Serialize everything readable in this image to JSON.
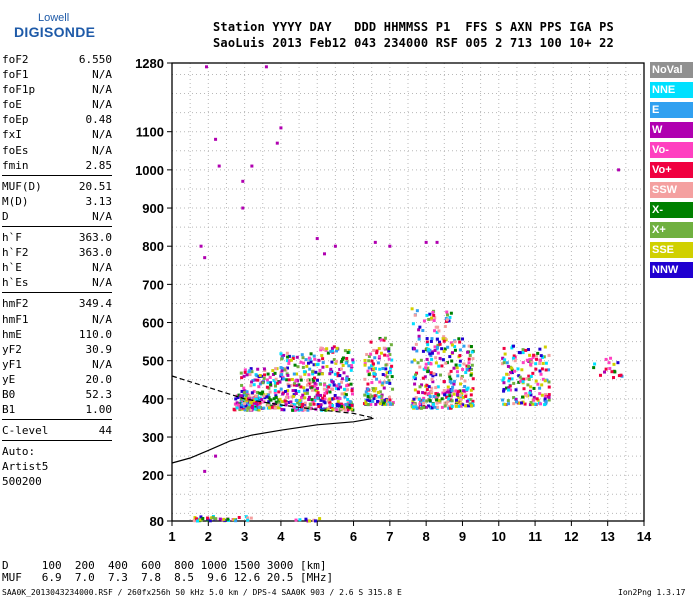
{
  "logo": {
    "line1": "Lowell",
    "line2": "DIGISONDE"
  },
  "header": {
    "line1": "Station YYYY DAY   DDD HHMMSS P1  FFS S AXN PPS IGA PS",
    "line2": "SaoLuis 2013 Feb12 043 234000 RSF 005 2 713 100 10+ 22"
  },
  "params_a": [
    {
      "label": "foF2",
      "value": "6.550"
    },
    {
      "label": "foF1",
      "value": "N/A"
    },
    {
      "label": "foF1p",
      "value": "N/A"
    },
    {
      "label": "foE",
      "value": "N/A"
    },
    {
      "label": "foEp",
      "value": "0.48"
    },
    {
      "label": "fxI",
      "value": "N/A"
    },
    {
      "label": "foEs",
      "value": "N/A"
    },
    {
      "label": "fmin",
      "value": "2.85"
    }
  ],
  "params_b": [
    {
      "label": "MUF(D)",
      "value": "20.51"
    },
    {
      "label": "M(D)",
      "value": "3.13"
    },
    {
      "label": "D",
      "value": "N/A"
    }
  ],
  "params_c": [
    {
      "label": "h`F",
      "value": "363.0"
    },
    {
      "label": "h`F2",
      "value": "363.0"
    },
    {
      "label": "h`E",
      "value": "N/A"
    },
    {
      "label": "h`Es",
      "value": "N/A"
    }
  ],
  "params_d": [
    {
      "label": "hmF2",
      "value": "349.4"
    },
    {
      "label": "hmF1",
      "value": "N/A"
    },
    {
      "label": "hmE",
      "value": "110.0"
    },
    {
      "label": "yF2",
      "value": "30.9"
    },
    {
      "label": "yF1",
      "value": "N/A"
    },
    {
      "label": "yE",
      "value": "20.0"
    },
    {
      "label": "B0",
      "value": "52.3"
    },
    {
      "label": "B1",
      "value": "1.00"
    }
  ],
  "params_e": [
    {
      "label": "C-level",
      "value": "44"
    }
  ],
  "autoscale": {
    "line1": "Auto:",
    "line2": "Artist5",
    "line3": "500200"
  },
  "legend": [
    {
      "label": "NoVal",
      "color": "#909090"
    },
    {
      "label": "NNE",
      "color": "#00e0ff"
    },
    {
      "label": "E",
      "color": "#30a0f0"
    },
    {
      "label": "W",
      "color": "#b000b0"
    },
    {
      "label": "Vo-",
      "color": "#ff40c0"
    },
    {
      "label": "Vo+",
      "color": "#f00040"
    },
    {
      "label": "SSW",
      "color": "#f4a0a0"
    },
    {
      "label": "X-",
      "color": "#008000"
    },
    {
      "label": "X+",
      "color": "#70b040"
    },
    {
      "label": "SSE",
      "color": "#d0d000"
    },
    {
      "label": "NNW",
      "color": "#2000d0"
    }
  ],
  "scale_table": {
    "d_row": "D     100  200  400  600  800 1000 1500 3000 [km]",
    "muf_row": "MUF   6.9  7.0  7.3  7.8  8.5  9.6 12.6 20.5 [MHz]"
  },
  "footer": {
    "left": "SAA0K_2013043234000.RSF / 260fx256h 50 kHz 5.0 km / DPS-4 SAA0K 903 / 2.6 S 315.8 E",
    "right": "Ion2Png 1.3.17"
  },
  "chart_data": {
    "type": "scatter",
    "x_ticks": [
      1,
      2,
      3,
      4,
      5,
      6,
      7,
      8,
      9,
      10,
      11,
      12,
      13,
      14
    ],
    "y_ticks": [
      80,
      200,
      300,
      400,
      500,
      600,
      700,
      800,
      900,
      1000,
      1100,
      1280
    ],
    "xlim": [
      1,
      14
    ],
    "ylim": [
      80,
      1280
    ],
    "grid": true,
    "legend_position": "right",
    "clusters": [
      {
        "f": [
          2.7,
          3.4
        ],
        "h": [
          370,
          410
        ],
        "n": 90
      },
      {
        "f": [
          2.9,
          4.0
        ],
        "h": [
          375,
          480
        ],
        "n": 160
      },
      {
        "f": [
          4.0,
          5.0
        ],
        "h": [
          370,
          520
        ],
        "n": 180
      },
      {
        "f": [
          5.0,
          6.0
        ],
        "h": [
          370,
          540
        ],
        "n": 200
      },
      {
        "f": [
          6.3,
          7.1
        ],
        "h": [
          385,
          560
        ],
        "n": 140
      },
      {
        "f": [
          7.6,
          8.7
        ],
        "h": [
          375,
          640
        ],
        "n": 240
      },
      {
        "f": [
          8.7,
          9.3
        ],
        "h": [
          380,
          560
        ],
        "n": 110
      },
      {
        "f": [
          10.1,
          11.4
        ],
        "h": [
          385,
          540
        ],
        "n": 160
      },
      {
        "f": [
          12.6,
          13.4
        ],
        "h": [
          455,
          510
        ],
        "n": 18
      },
      {
        "f": [
          1.6,
          3.2
        ],
        "h": [
          80,
          92
        ],
        "n": 40
      },
      {
        "f": [
          4.4,
          5.2
        ],
        "h": [
          80,
          88
        ],
        "n": 8
      }
    ],
    "trace_f": [
      {
        "f": 1.0,
        "h": 232
      },
      {
        "f": 1.5,
        "h": 245
      },
      {
        "f": 2.0,
        "h": 265
      },
      {
        "f": 2.6,
        "h": 290
      },
      {
        "f": 3.2,
        "h": 305
      },
      {
        "f": 4.0,
        "h": 318
      },
      {
        "f": 5.0,
        "h": 332
      },
      {
        "f": 6.0,
        "h": 340
      },
      {
        "f": 6.55,
        "h": 349
      }
    ],
    "trace_dashed": [
      {
        "f": 1.0,
        "h": 460
      },
      {
        "f": 2.0,
        "h": 430
      },
      {
        "f": 3.0,
        "h": 400
      },
      {
        "f": 4.0,
        "h": 384
      },
      {
        "f": 5.0,
        "h": 372
      },
      {
        "f": 6.0,
        "h": 362
      },
      {
        "f": 6.55,
        "h": 350
      }
    ]
  }
}
